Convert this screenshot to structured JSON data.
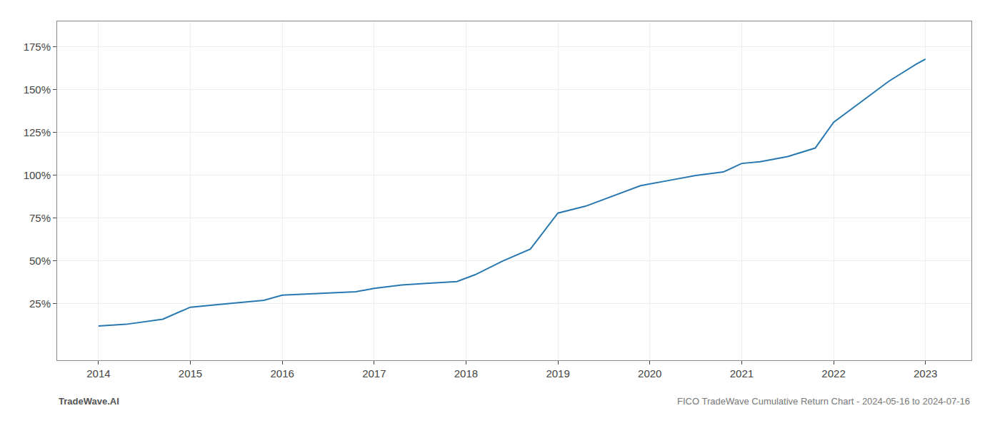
{
  "chart_data": {
    "type": "line",
    "x": [
      2014.0,
      2014.3,
      2014.7,
      2015.0,
      2015.4,
      2015.8,
      2016.0,
      2016.4,
      2016.8,
      2017.0,
      2017.3,
      2017.6,
      2017.9,
      2018.1,
      2018.4,
      2018.7,
      2019.0,
      2019.3,
      2019.6,
      2019.9,
      2020.2,
      2020.5,
      2020.8,
      2021.0,
      2021.2,
      2021.5,
      2021.8,
      2022.0,
      2022.3,
      2022.6,
      2022.9,
      2023.0
    ],
    "values": [
      12,
      13,
      16,
      23,
      25,
      27,
      30,
      31,
      32,
      34,
      36,
      37,
      38,
      42,
      50,
      57,
      78,
      82,
      88,
      94,
      97,
      100,
      102,
      107,
      108,
      111,
      116,
      131,
      143,
      155,
      165,
      168
    ],
    "color": "#2878b0",
    "xlim": [
      2013.55,
      2023.5
    ],
    "xticks": [
      2014,
      2015,
      2016,
      2017,
      2018,
      2019,
      2020,
      2021,
      2022,
      2023
    ],
    "ylim": [
      -8,
      190
    ],
    "yticks": [
      {
        "value": 25,
        "label": "25%"
      },
      {
        "value": 50,
        "label": "50%"
      },
      {
        "value": 75,
        "label": "75%"
      },
      {
        "value": 100,
        "label": "100%"
      },
      {
        "value": 125,
        "label": "125%"
      },
      {
        "value": 150,
        "label": "150%"
      },
      {
        "value": 175,
        "label": "175%"
      }
    ],
    "grid": true,
    "annotations": [
      "TradeWave.AI",
      "FICO TradeWave Cumulative Return Chart - 2024-05-16 to 2024-07-16"
    ]
  }
}
